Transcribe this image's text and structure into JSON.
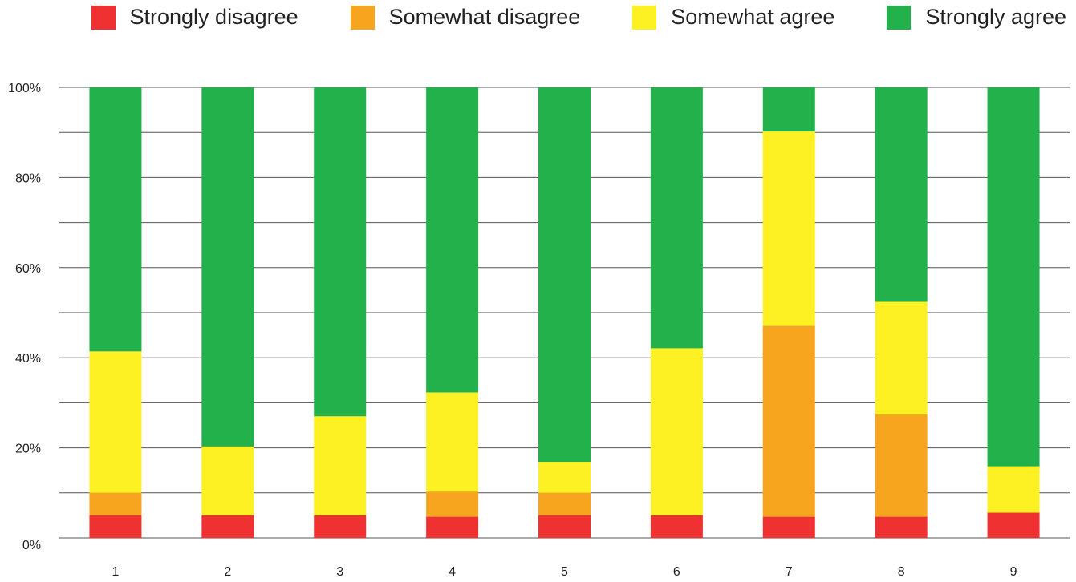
{
  "chart_data": {
    "type": "bar",
    "stacked": true,
    "categories": [
      "1",
      "2",
      "3",
      "4",
      "5",
      "6",
      "7",
      "8",
      "9"
    ],
    "series": [
      {
        "name": "Strongly disagree",
        "color": "#ef3131",
        "values": [
          5,
          5,
          5,
          4.7,
          5,
          5,
          4.7,
          4.7,
          5.6
        ]
      },
      {
        "name": "Somewhat disagree",
        "color": "#f7a51e",
        "values": [
          5,
          0,
          0,
          5.6,
          5,
          0,
          42.4,
          22.7,
          0
        ]
      },
      {
        "name": "Somewhat agree",
        "color": "#fdf023",
        "values": [
          31.4,
          15.3,
          22,
          22,
          6.9,
          37.1,
          43.1,
          25,
          10.3
        ]
      },
      {
        "name": "Strongly agree",
        "color": "#23b14c",
        "values": [
          58.6,
          79.7,
          73,
          67.7,
          83.1,
          57.9,
          9.8,
          47.6,
          84.1
        ]
      }
    ],
    "yticks": [
      "0%",
      "20%",
      "40%",
      "60%",
      "80%",
      "100%"
    ],
    "ylim": [
      0,
      100
    ],
    "grid": true,
    "legend_position": "top-right"
  }
}
